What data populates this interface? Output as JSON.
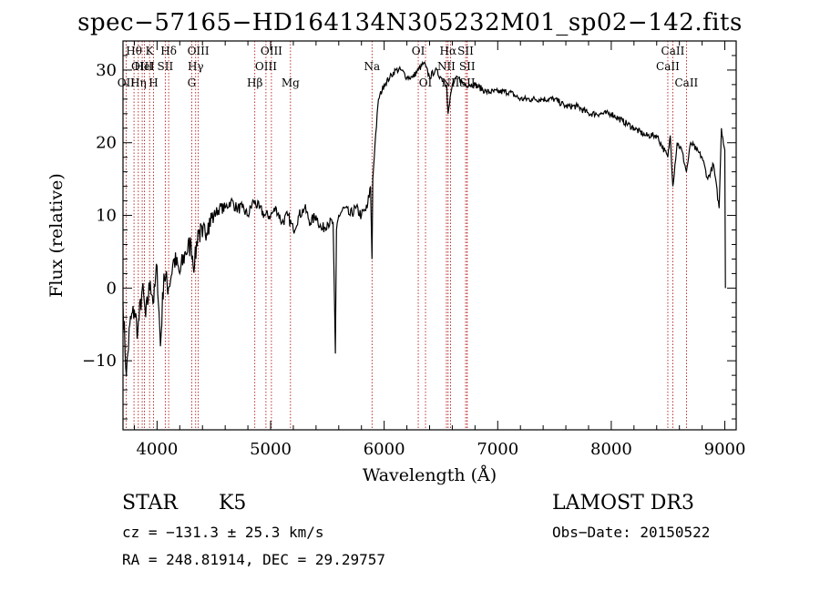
{
  "title": "spec−57165−HD164134N305232M01_sp02−142.fits",
  "info": {
    "object_class": "STAR",
    "subclass": "K5",
    "survey": "LAMOST DR3",
    "cz": "cz = −131.3 ± 25.3 km/s",
    "obs_date": "Obs−Date: 20150522",
    "radec": "RA = 248.81914, DEC =  29.29757"
  },
  "colors": {
    "spectrum": "#000000",
    "line_marker": "#aa0000",
    "axis": "#000000"
  },
  "chart_data": {
    "type": "line",
    "title": "spec−57165−HD164134N305232M01_sp02−142.fits",
    "xlabel": "Wavelength (Å)",
    "ylabel": "Flux (relative)",
    "xlim": [
      3700,
      9100
    ],
    "ylim": [
      -19.5,
      34
    ],
    "xticks": [
      4000,
      5000,
      6000,
      7000,
      8000,
      9000
    ],
    "xtick_labels": [
      "4000",
      "5000",
      "6000",
      "7000",
      "8000",
      "9000"
    ],
    "yticks": [
      -10,
      0,
      10,
      20,
      30
    ],
    "ytick_labels": [
      "−10",
      "0",
      "10",
      "20",
      "30"
    ],
    "series": [
      {
        "name": "spectrum",
        "x": [
          3700,
          3730,
          3760,
          3800,
          3830,
          3870,
          3900,
          3940,
          3970,
          4000,
          4030,
          4060,
          4100,
          4150,
          4200,
          4250,
          4300,
          4330,
          4360,
          4400,
          4450,
          4500,
          4550,
          4600,
          4650,
          4700,
          4750,
          4800,
          4850,
          4900,
          4950,
          5000,
          5050,
          5100,
          5150,
          5200,
          5250,
          5300,
          5350,
          5400,
          5450,
          5500,
          5550,
          5570,
          5580,
          5600,
          5650,
          5700,
          5750,
          5800,
          5850,
          5880,
          5893,
          5900,
          5920,
          5950,
          6000,
          6050,
          6100,
          6150,
          6200,
          6250,
          6300,
          6350,
          6400,
          6450,
          6500,
          6550,
          6563,
          6600,
          6650,
          6700,
          6750,
          6800,
          6900,
          7000,
          7100,
          7200,
          7300,
          7400,
          7500,
          7600,
          7700,
          7800,
          7900,
          8000,
          8100,
          8200,
          8300,
          8400,
          8498,
          8520,
          8542,
          8580,
          8620,
          8662,
          8700,
          8750,
          8800,
          8850,
          8900,
          8950,
          8970,
          9000,
          9005
        ],
        "y": [
          -2,
          -12,
          -5,
          -3,
          -6,
          0,
          -4,
          1,
          -2,
          3,
          -8,
          2,
          0,
          4,
          2,
          5,
          6,
          3,
          8,
          7,
          9,
          10,
          11,
          11,
          12,
          11,
          11,
          10,
          12,
          11,
          10,
          10,
          11,
          9,
          10,
          8,
          10,
          11,
          9,
          10,
          8,
          9,
          9,
          -9,
          8,
          10,
          11,
          10,
          11,
          10,
          11,
          14,
          4,
          15,
          20,
          26,
          28,
          29,
          30,
          30,
          29,
          29,
          30,
          31,
          29,
          30,
          29,
          28,
          24,
          28,
          29,
          28,
          28,
          28,
          27,
          27,
          27,
          26,
          26,
          26,
          26,
          25,
          25,
          24,
          24,
          24,
          23,
          22,
          21,
          21,
          18,
          21,
          14,
          20,
          19,
          16,
          20,
          19,
          18,
          15,
          17,
          11,
          22,
          19,
          0
        ]
      }
    ],
    "spectral_lines": [
      {
        "label": "OII",
        "wave": 3727,
        "row": 3
      },
      {
        "label": "Hθ",
        "wave": 3797,
        "row": 1
      },
      {
        "label": "OIII",
        "wave": 3869,
        "row": 2
      },
      {
        "label": "K",
        "wave": 3934,
        "row": 1
      },
      {
        "label": "HeI",
        "wave": 3889,
        "row": 2
      },
      {
        "label": "Hη",
        "wave": 3835,
        "row": 3
      },
      {
        "label": "H",
        "wave": 3969,
        "row": 3
      },
      {
        "label": "SII",
        "wave": 4072,
        "row": 2
      },
      {
        "label": "Hδ",
        "wave": 4102,
        "row": 1
      },
      {
        "label": "OIII",
        "wave": 4363,
        "row": 1
      },
      {
        "label": "Hγ",
        "wave": 4340,
        "row": 2
      },
      {
        "label": "G",
        "wave": 4305,
        "row": 3
      },
      {
        "label": "Hβ",
        "wave": 4861,
        "row": 3
      },
      {
        "label": "OIII",
        "wave": 5007,
        "row": 1
      },
      {
        "label": "OIII",
        "wave": 4959,
        "row": 2
      },
      {
        "label": "Mg",
        "wave": 5175,
        "row": 3
      },
      {
        "label": "Na",
        "wave": 5893,
        "row": 2
      },
      {
        "label": "OI",
        "wave": 6300,
        "row": 1
      },
      {
        "label": "OI",
        "wave": 6364,
        "row": 3
      },
      {
        "label": "Hα",
        "wave": 6563,
        "row": 1
      },
      {
        "label": "NII",
        "wave": 6548,
        "row": 2
      },
      {
        "label": "NII",
        "wave": 6584,
        "row": 3
      },
      {
        "label": "SII",
        "wave": 6717,
        "row": 1
      },
      {
        "label": "SII",
        "wave": 6731,
        "row": 2
      },
      {
        "label": "SII",
        "wave": 6731,
        "row": 3
      },
      {
        "label": "CaII",
        "wave": 8542,
        "row": 1
      },
      {
        "label": "CaII",
        "wave": 8498,
        "row": 2
      },
      {
        "label": "CaII",
        "wave": 8662,
        "row": 3
      }
    ]
  }
}
